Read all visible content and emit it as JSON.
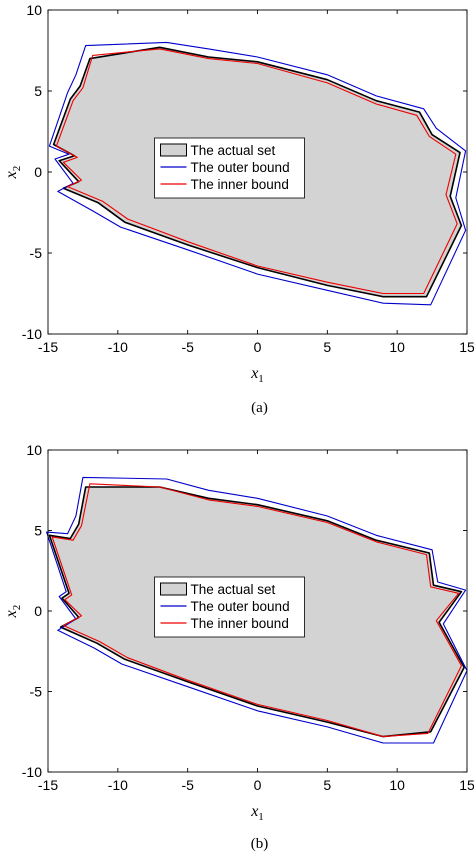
{
  "chart_data": [
    {
      "type": "area",
      "panel": "(a)",
      "xlabel_base": "x",
      "xlabel_sub": "1",
      "ylabel_base": "x",
      "ylabel_sub": "2",
      "xlim": [
        -15,
        15
      ],
      "ylim": [
        -10,
        10
      ],
      "xticks": [
        -15,
        -10,
        -5,
        0,
        5,
        10,
        15
      ],
      "yticks": [
        -10,
        -5,
        0,
        5,
        10
      ],
      "legend_position": "center",
      "series": [
        {
          "name": "The actual set",
          "color": "#000000",
          "fill": "#d3d3d3",
          "x": [
            -14.6,
            -13.4,
            -12.7,
            -12.0,
            -7.0,
            -3.5,
            0.0,
            5.0,
            8.5,
            11.6,
            12.5,
            14.5,
            13.8,
            14.6,
            12.1,
            9.0,
            5.0,
            0.0,
            -5.0,
            -9.5,
            -11.4,
            -13.9,
            -12.8,
            -14.2,
            -13.1
          ],
          "y": [
            1.7,
            4.5,
            5.3,
            7.0,
            7.7,
            7.1,
            6.8,
            5.7,
            4.4,
            3.7,
            2.3,
            1.2,
            -1.5,
            -3.3,
            -7.7,
            -7.7,
            -7.0,
            -5.9,
            -4.5,
            -3.1,
            -1.9,
            -1.0,
            -0.6,
            0.7,
            1.0
          ]
        },
        {
          "name": "The outer bound",
          "color": "#0000cc",
          "x": [
            -14.9,
            -13.6,
            -13.0,
            -12.3,
            -6.5,
            -3.5,
            0.0,
            5.0,
            8.5,
            11.9,
            12.8,
            14.9,
            14.2,
            14.9,
            12.4,
            9.0,
            5.0,
            0.0,
            -5.0,
            -9.8,
            -11.8,
            -14.3,
            -13.2,
            -14.5,
            -13.5
          ],
          "y": [
            1.6,
            4.9,
            6.0,
            7.8,
            8.0,
            7.6,
            7.1,
            6.0,
            4.7,
            3.9,
            2.7,
            1.3,
            -1.6,
            -3.6,
            -8.2,
            -8.1,
            -7.3,
            -6.3,
            -4.8,
            -3.4,
            -2.4,
            -1.2,
            -0.7,
            0.8,
            1.1
          ]
        },
        {
          "name": "The inner bound",
          "color": "#ee0000",
          "x": [
            -14.4,
            -13.2,
            -12.5,
            -11.8,
            -7.0,
            -3.5,
            0.0,
            5.0,
            8.5,
            11.4,
            12.3,
            14.2,
            13.5,
            14.3,
            11.9,
            9.0,
            5.0,
            0.0,
            -5.0,
            -9.3,
            -11.1,
            -13.6,
            -12.6,
            -13.9,
            -12.9
          ],
          "y": [
            1.6,
            4.4,
            5.2,
            7.2,
            7.6,
            7.0,
            6.7,
            5.5,
            4.2,
            3.5,
            2.2,
            1.1,
            -1.4,
            -3.2,
            -7.5,
            -7.5,
            -6.8,
            -5.8,
            -4.3,
            -2.9,
            -1.8,
            -0.9,
            -0.5,
            0.6,
            0.9
          ]
        }
      ]
    },
    {
      "type": "area",
      "panel": "(b)",
      "xlabel_base": "x",
      "xlabel_sub": "1",
      "ylabel_base": "x",
      "ylabel_sub": "2",
      "xlim": [
        -15,
        15
      ],
      "ylim": [
        -10,
        10
      ],
      "xticks": [
        -15,
        -10,
        -5,
        0,
        5,
        10,
        15
      ],
      "yticks": [
        -10,
        -5,
        0,
        5,
        10
      ],
      "legend_position": "center",
      "series": [
        {
          "name": "The actual set",
          "color": "#000000",
          "fill": "#d3d3d3",
          "x": [
            -14.9,
            -13.4,
            -12.8,
            -12.3,
            -7.0,
            -3.5,
            0.0,
            5.0,
            8.5,
            12.3,
            12.6,
            14.6,
            13.0,
            14.8,
            12.4,
            9.0,
            5.0,
            0.0,
            -5.0,
            -9.5,
            -11.5,
            -14.1,
            -12.8,
            -14.0,
            -13.5
          ],
          "y": [
            4.7,
            4.5,
            5.4,
            7.7,
            7.7,
            7.0,
            6.6,
            5.6,
            4.4,
            3.6,
            1.6,
            1.2,
            -0.7,
            -3.5,
            -7.5,
            -7.8,
            -6.9,
            -5.9,
            -4.4,
            -3.0,
            -2.0,
            -1.0,
            -0.4,
            0.8,
            1.1
          ]
        },
        {
          "name": "The outer bound",
          "color": "#0000cc",
          "x": [
            -15.1,
            -13.6,
            -13.0,
            -12.5,
            -6.5,
            -3.5,
            0.0,
            5.0,
            8.5,
            12.5,
            12.9,
            14.9,
            13.3,
            15.0,
            12.6,
            9.0,
            5.0,
            0.0,
            -5.0,
            -9.7,
            -11.7,
            -14.3,
            -13.0,
            -14.2,
            -13.7
          ],
          "y": [
            4.9,
            4.8,
            5.9,
            8.3,
            8.2,
            7.5,
            7.0,
            5.9,
            4.7,
            3.8,
            1.8,
            1.3,
            -0.8,
            -3.7,
            -8.2,
            -8.2,
            -7.2,
            -6.2,
            -4.7,
            -3.3,
            -2.3,
            -1.2,
            -0.5,
            0.9,
            1.2
          ]
        },
        {
          "name": "The inner bound",
          "color": "#ee0000",
          "x": [
            -14.7,
            -13.2,
            -12.6,
            -12.0,
            -7.0,
            -3.5,
            0.0,
            5.0,
            8.5,
            12.1,
            12.4,
            14.4,
            12.8,
            14.6,
            12.2,
            9.0,
            5.0,
            0.0,
            -5.0,
            -9.3,
            -11.3,
            -13.9,
            -12.6,
            -13.8,
            -13.3
          ],
          "y": [
            4.6,
            4.4,
            5.3,
            7.9,
            7.7,
            6.9,
            6.5,
            5.5,
            4.3,
            3.5,
            1.5,
            1.1,
            -0.6,
            -3.4,
            -7.6,
            -7.8,
            -6.8,
            -5.8,
            -4.3,
            -2.9,
            -1.9,
            -0.9,
            -0.3,
            0.7,
            1.0
          ]
        }
      ]
    }
  ]
}
